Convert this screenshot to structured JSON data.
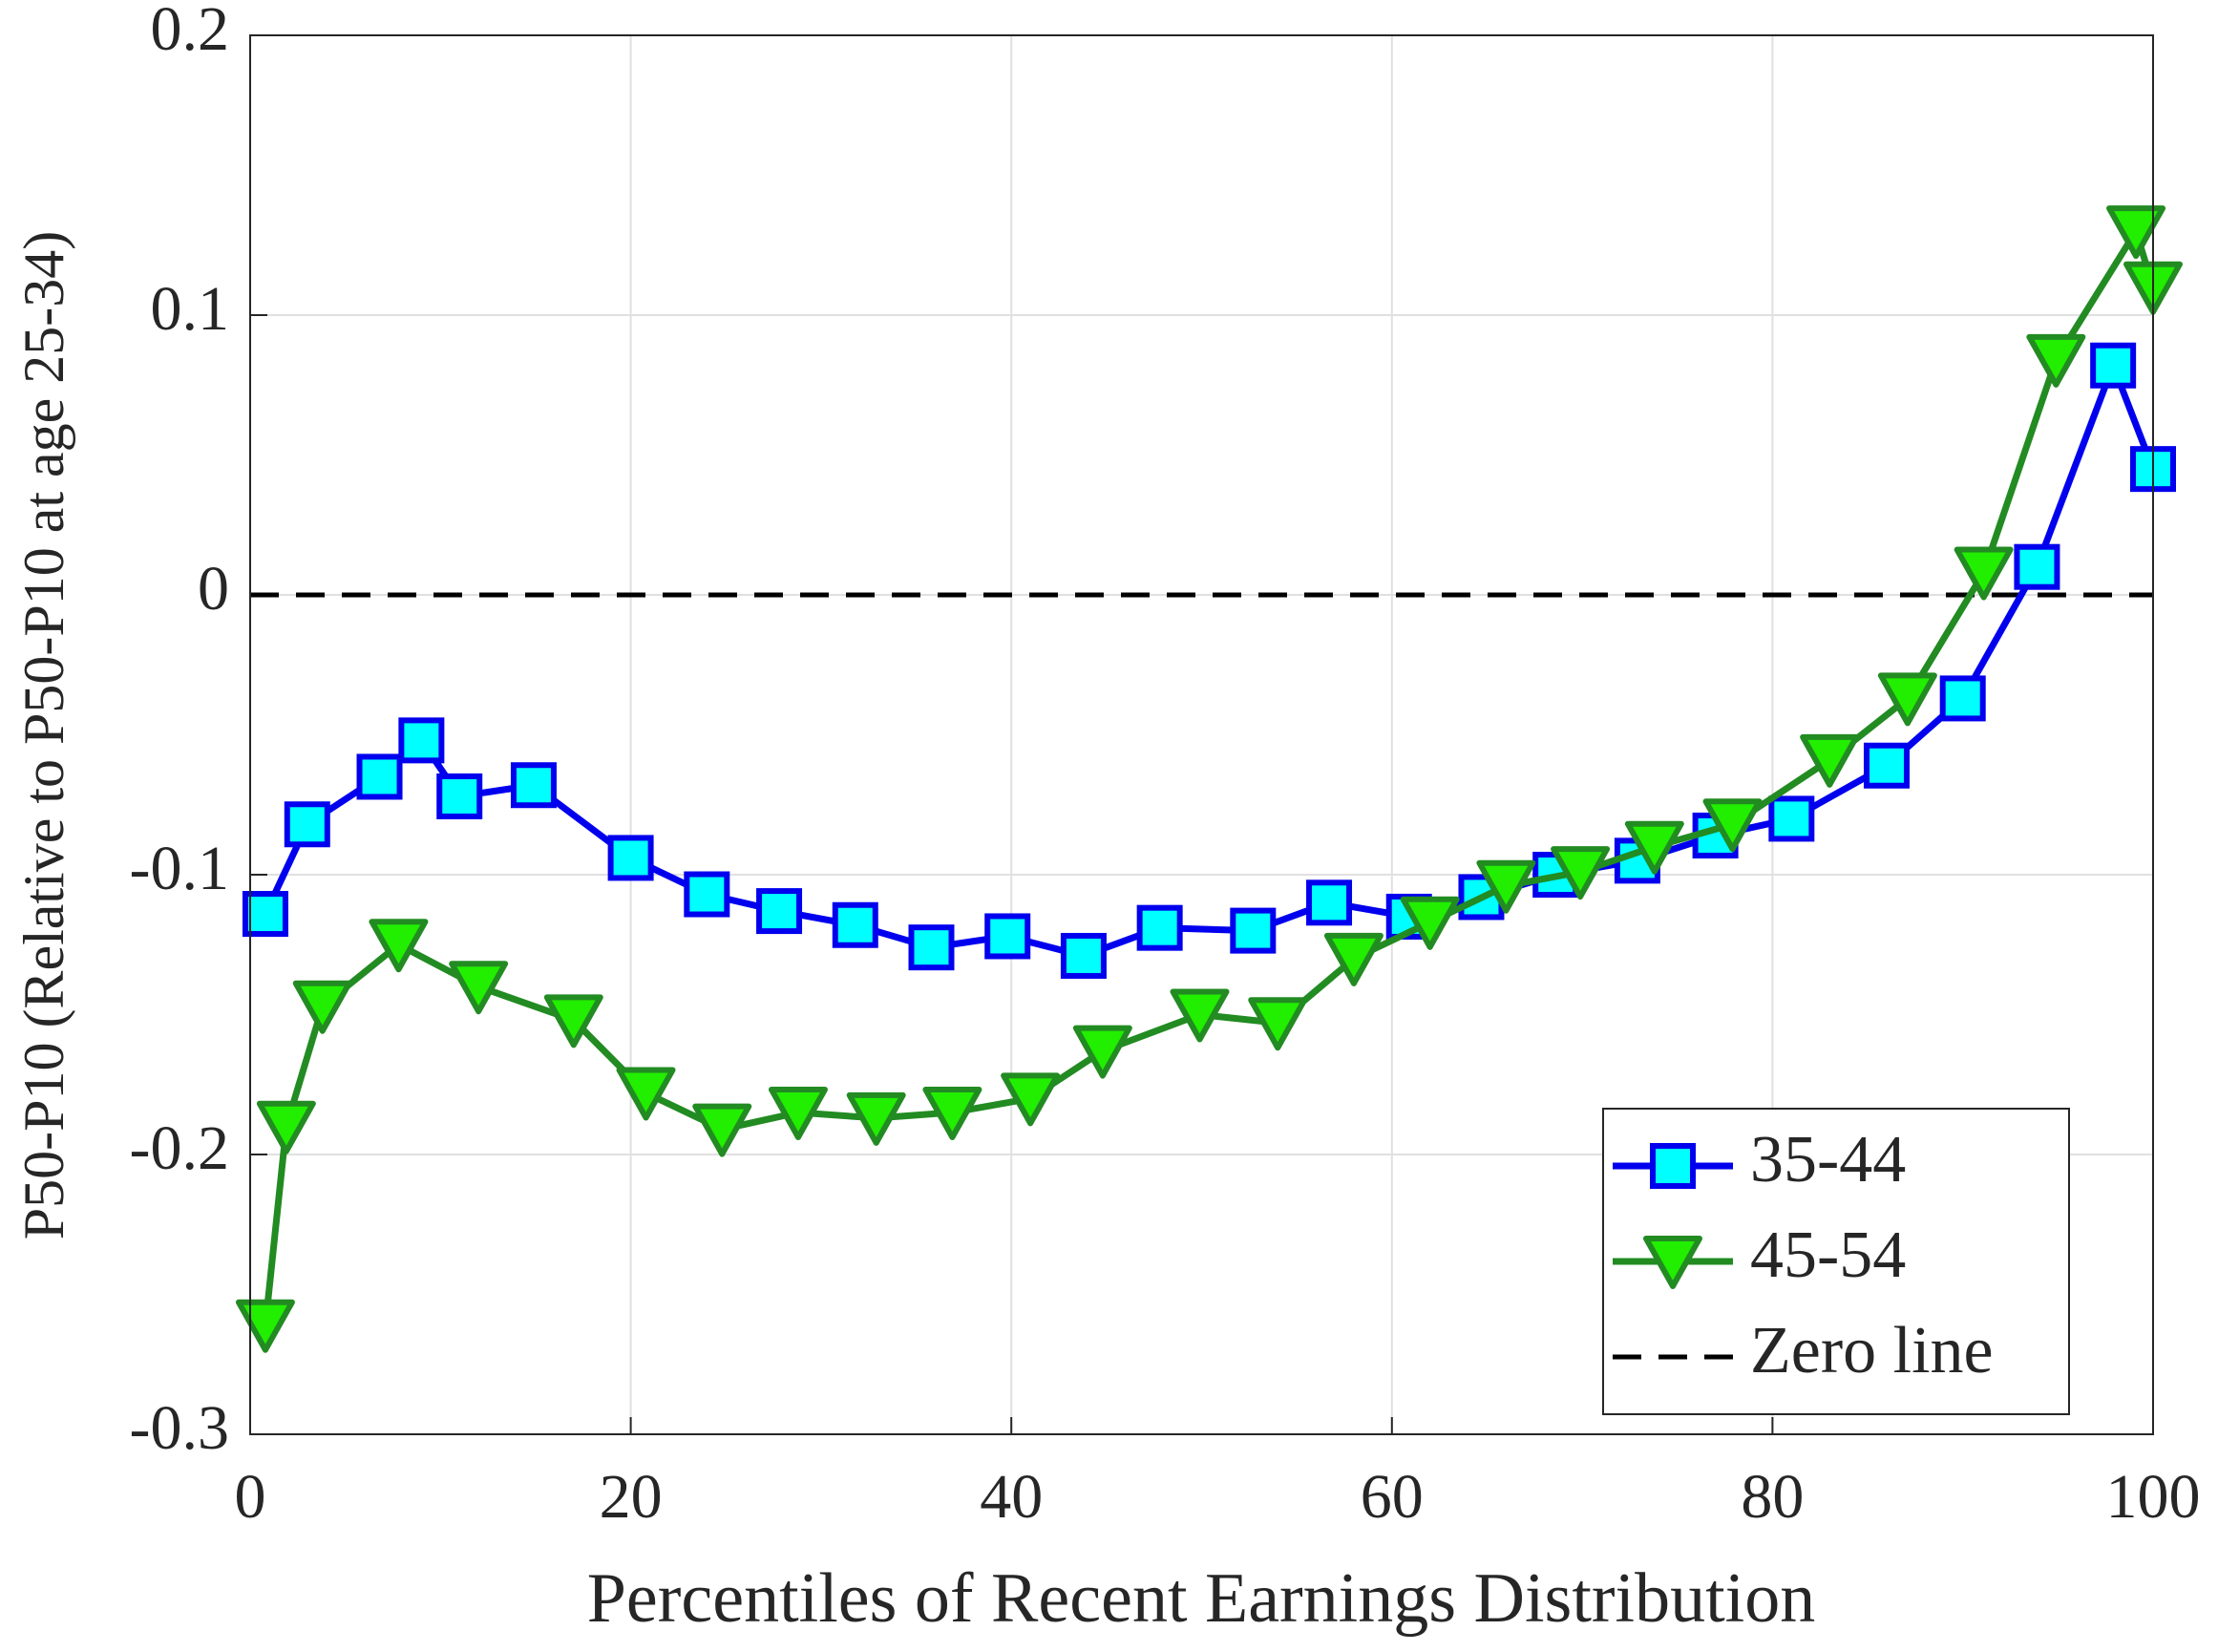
{
  "chart_data": {
    "type": "line",
    "x_label": "Percentiles of Recent Earnings Distribution",
    "y_label": "P50-P10 (Relative to P50-P10 at age 25-34)",
    "xlim": [
      0,
      100
    ],
    "xticks": [
      0,
      20,
      40,
      60,
      80,
      100
    ],
    "ylim": [
      -0.3,
      0.2
    ],
    "yticks": [
      -0.3,
      -0.2,
      -0.1,
      0,
      0.1,
      0.2
    ],
    "grid": true,
    "legend": "lower right",
    "series": [
      {
        "name": "35-44",
        "color": "#0000ee",
        "marker_fill": "#00ffff",
        "marker": "square",
        "x": [
          0.8,
          3.0,
          6.8,
          9.0,
          11.0,
          14.9,
          20.0,
          24.0,
          27.8,
          31.8,
          35.8,
          39.8,
          43.8,
          47.8,
          52.7,
          56.7,
          60.9,
          64.7,
          68.6,
          72.9,
          77.0,
          81.0,
          86.0,
          90.0,
          93.9,
          97.9,
          100
        ],
        "values": [
          -0.114,
          -0.082,
          -0.065,
          -0.052,
          -0.072,
          -0.068,
          -0.094,
          -0.107,
          -0.113,
          -0.118,
          -0.126,
          -0.122,
          -0.129,
          -0.119,
          -0.12,
          -0.11,
          -0.115,
          -0.108,
          -0.1,
          -0.095,
          -0.086,
          -0.08,
          -0.061,
          -0.037,
          0.01,
          0.082,
          0.045
        ]
      },
      {
        "name": "45-54",
        "color": "#228b22",
        "marker_fill": "#22ee00",
        "marker": "triangle-down",
        "x": [
          0.8,
          1.9,
          3.8,
          7.8,
          12.0,
          17.0,
          20.8,
          24.8,
          28.8,
          32.9,
          36.9,
          41.0,
          44.8,
          49.9,
          54.0,
          58.0,
          62.0,
          66.0,
          69.9,
          73.8,
          77.9,
          83.0,
          87.1,
          91.1,
          94.9,
          99.1,
          100
        ],
        "values": [
          -0.261,
          -0.19,
          -0.147,
          -0.125,
          -0.14,
          -0.152,
          -0.178,
          -0.191,
          -0.185,
          -0.187,
          -0.185,
          -0.18,
          -0.163,
          -0.15,
          -0.153,
          -0.13,
          -0.117,
          -0.104,
          -0.099,
          -0.09,
          -0.082,
          -0.059,
          -0.037,
          0.008,
          0.084,
          0.13,
          0.11
        ]
      }
    ],
    "reference_line": {
      "name": "Zero line",
      "y": 0,
      "color": "#000000"
    }
  }
}
